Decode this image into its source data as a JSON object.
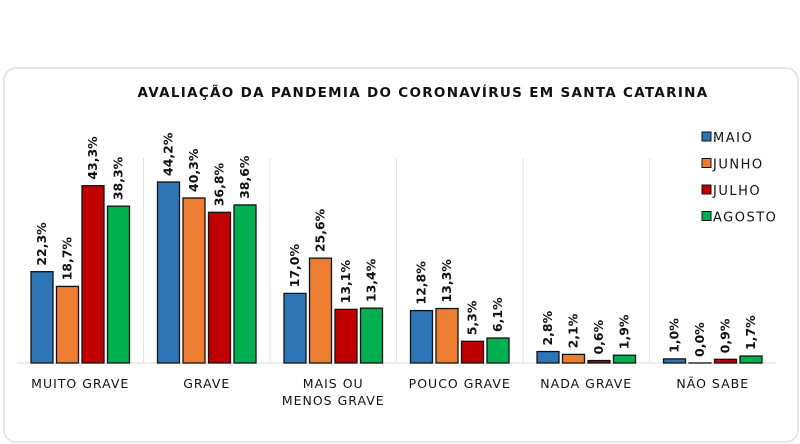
{
  "chart_data": {
    "type": "bar",
    "title": "AVALIAÇÃO DA PANDEMIA DO CORONAVÍRUS EM SANTA CATARINA",
    "categories": [
      [
        "MUITO GRAVE"
      ],
      [
        "GRAVE"
      ],
      [
        "MAIS OU",
        "MENOS GRAVE"
      ],
      [
        "POUCO GRAVE"
      ],
      [
        "NADA GRAVE"
      ],
      [
        "NÃO SABE"
      ]
    ],
    "series": [
      {
        "name": "MAIO",
        "color": "#2E75B6",
        "values": [
          22.3,
          44.2,
          17.0,
          12.8,
          2.8,
          1.0
        ],
        "labels": [
          "22,3%",
          "44,2%",
          "17,0%",
          "12,8%",
          "2,8%",
          "1,0%"
        ]
      },
      {
        "name": "JUNHO",
        "color": "#ED7D31",
        "values": [
          18.7,
          40.3,
          25.6,
          13.3,
          2.1,
          0.0
        ],
        "labels": [
          "18,7%",
          "40,3%",
          "25,6%",
          "13,3%",
          "2,1%",
          "0,0%"
        ]
      },
      {
        "name": "JULHO",
        "color": "#C00000",
        "values": [
          43.3,
          36.8,
          13.1,
          5.3,
          0.6,
          0.9
        ],
        "labels": [
          "43,3%",
          "36,8%",
          "13,1%",
          "5,3%",
          "0,6%",
          "0,9%"
        ]
      },
      {
        "name": "AGOSTO",
        "color": "#00B050",
        "values": [
          38.3,
          38.6,
          13.4,
          6.1,
          1.9,
          1.7
        ],
        "labels": [
          "38,3%",
          "38,6%",
          "13,4%",
          "6,1%",
          "1,9%",
          "1,7%"
        ]
      }
    ],
    "ylim": [
      0,
      50
    ],
    "grid": "vertical category separators",
    "legend": "top-right",
    "xlabel": "",
    "ylabel": ""
  }
}
